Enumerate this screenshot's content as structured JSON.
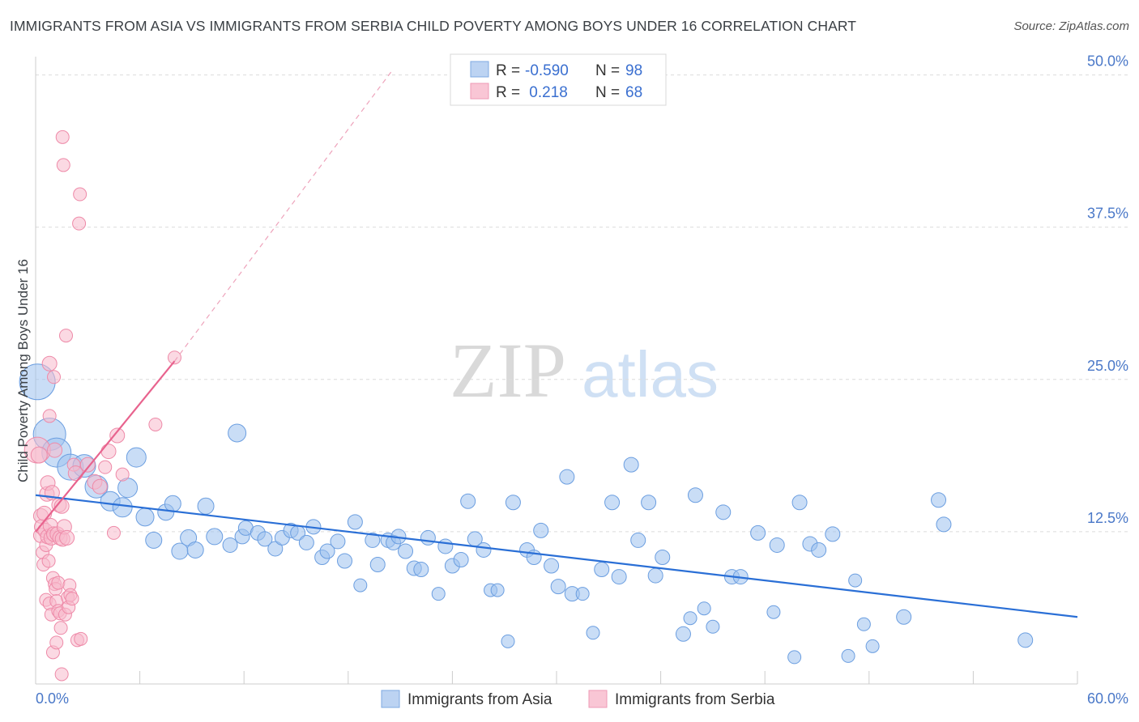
{
  "title": "IMMIGRANTS FROM ASIA VS IMMIGRANTS FROM SERBIA CHILD POVERTY AMONG BOYS UNDER 16 CORRELATION CHART",
  "source": "Source: ZipAtlas.com",
  "watermark": {
    "zip": "ZIP",
    "atlas": "atlas"
  },
  "chart_data": {
    "type": "scatter",
    "title": "IMMIGRANTS FROM ASIA VS IMMIGRANTS FROM SERBIA CHILD POVERTY AMONG BOYS UNDER 16 CORRELATION CHART",
    "xlabel": "",
    "ylabel": "Child Poverty Among Boys Under 16",
    "xlim": [
      0,
      60
    ],
    "ylim": [
      0,
      51.5
    ],
    "x_tick_labels": [
      "0.0%",
      "60.0%"
    ],
    "y_ticks": [
      12.5,
      25.0,
      37.5,
      50.0
    ],
    "y_tick_labels": [
      "12.5%",
      "25.0%",
      "37.5%",
      "50.0%"
    ],
    "grid": "horizontal dashed",
    "legend": {
      "placement": "top-center",
      "rows": [
        {
          "r_label": "R =",
          "r_value": "-0.590",
          "n_label": "N =",
          "n_value": "98"
        },
        {
          "r_label": "R =",
          "r_value": " 0.218",
          "n_label": "N =",
          "n_value": "68"
        }
      ]
    },
    "bottom_legend": [
      "Immigrants from Asia",
      "Immigrants from Serbia"
    ],
    "series": [
      {
        "name": "Immigrants from Asia",
        "color": "#9dc1ee",
        "stroke": "#6b9ee0",
        "trend_color": "#2a6fd6",
        "trend": {
          "x0": 0,
          "y0": 15.5,
          "x1": 60,
          "y1": 5.5
        },
        "points": [
          [
            0.1,
            24.8,
            22
          ],
          [
            0.8,
            20.5,
            20
          ],
          [
            1.2,
            19.0,
            18
          ],
          [
            2.0,
            17.8,
            16
          ],
          [
            2.8,
            17.9,
            14
          ],
          [
            3.5,
            16.2,
            14
          ],
          [
            4.3,
            15.0,
            12
          ],
          [
            5.0,
            14.5,
            12
          ],
          [
            5.3,
            16.1,
            12
          ],
          [
            5.8,
            18.6,
            12
          ],
          [
            6.3,
            13.7,
            11
          ],
          [
            6.8,
            11.8,
            10
          ],
          [
            7.5,
            14.1,
            10
          ],
          [
            7.9,
            14.8,
            10
          ],
          [
            8.3,
            10.9,
            10
          ],
          [
            8.8,
            12.0,
            10
          ],
          [
            9.2,
            11.0,
            10
          ],
          [
            9.8,
            14.6,
            10
          ],
          [
            10.3,
            12.1,
            10
          ],
          [
            11.2,
            11.4,
            9
          ],
          [
            11.6,
            20.6,
            11
          ],
          [
            11.9,
            12.1,
            9
          ],
          [
            12.1,
            12.8,
            9
          ],
          [
            12.8,
            12.4,
            9
          ],
          [
            13.2,
            11.9,
            9
          ],
          [
            13.8,
            11.1,
            9
          ],
          [
            14.2,
            12.0,
            9
          ],
          [
            14.7,
            12.6,
            9
          ],
          [
            15.1,
            12.4,
            9
          ],
          [
            15.6,
            11.6,
            9
          ],
          [
            16.0,
            12.9,
            9
          ],
          [
            16.5,
            10.4,
            9
          ],
          [
            16.8,
            10.9,
            9
          ],
          [
            17.4,
            11.7,
            9
          ],
          [
            17.8,
            10.1,
            9
          ],
          [
            18.4,
            13.3,
            9
          ],
          [
            18.7,
            8.1,
            8
          ],
          [
            19.4,
            11.8,
            9
          ],
          [
            19.7,
            9.8,
            9
          ],
          [
            20.3,
            11.8,
            9
          ],
          [
            20.6,
            11.6,
            9
          ],
          [
            20.9,
            12.1,
            9
          ],
          [
            21.3,
            10.9,
            9
          ],
          [
            21.8,
            9.5,
            9
          ],
          [
            22.2,
            9.4,
            9
          ],
          [
            22.6,
            12.0,
            9
          ],
          [
            23.2,
            7.4,
            8
          ],
          [
            23.6,
            11.3,
            9
          ],
          [
            24.0,
            9.7,
            9
          ],
          [
            24.5,
            10.2,
            9
          ],
          [
            24.9,
            15.0,
            9
          ],
          [
            25.3,
            11.9,
            9
          ],
          [
            25.8,
            11.0,
            9
          ],
          [
            26.2,
            7.7,
            8
          ],
          [
            26.6,
            7.7,
            8
          ],
          [
            27.2,
            3.5,
            8
          ],
          [
            27.5,
            14.9,
            9
          ],
          [
            28.3,
            11.0,
            9
          ],
          [
            28.7,
            10.4,
            9
          ],
          [
            29.1,
            12.6,
            9
          ],
          [
            29.7,
            9.7,
            9
          ],
          [
            30.1,
            8.0,
            9
          ],
          [
            30.6,
            17.0,
            9
          ],
          [
            30.9,
            7.4,
            9
          ],
          [
            31.5,
            7.4,
            8
          ],
          [
            32.1,
            4.2,
            8
          ],
          [
            32.6,
            9.4,
            9
          ],
          [
            33.2,
            14.9,
            9
          ],
          [
            33.6,
            8.8,
            9
          ],
          [
            34.3,
            18.0,
            9
          ],
          [
            34.7,
            11.8,
            9
          ],
          [
            35.3,
            14.9,
            9
          ],
          [
            35.7,
            8.9,
            9
          ],
          [
            36.1,
            10.4,
            9
          ],
          [
            37.3,
            4.1,
            9
          ],
          [
            37.7,
            5.4,
            8
          ],
          [
            38.0,
            15.5,
            9
          ],
          [
            38.5,
            6.2,
            8
          ],
          [
            39.0,
            4.7,
            8
          ],
          [
            39.6,
            14.1,
            9
          ],
          [
            40.1,
            8.8,
            9
          ],
          [
            40.6,
            8.8,
            9
          ],
          [
            41.6,
            12.4,
            9
          ],
          [
            42.5,
            5.9,
            8
          ],
          [
            42.7,
            11.4,
            9
          ],
          [
            43.7,
            2.2,
            8
          ],
          [
            44.0,
            14.9,
            9
          ],
          [
            44.6,
            11.5,
            9
          ],
          [
            45.1,
            11.0,
            9
          ],
          [
            45.9,
            12.3,
            9
          ],
          [
            46.8,
            2.3,
            8
          ],
          [
            47.2,
            8.5,
            8
          ],
          [
            47.7,
            4.9,
            8
          ],
          [
            48.2,
            3.1,
            8
          ],
          [
            50.0,
            5.5,
            9
          ],
          [
            52.0,
            15.1,
            9
          ],
          [
            52.3,
            13.1,
            9
          ],
          [
            57.0,
            3.6,
            9
          ]
        ]
      },
      {
        "name": "Immigrants from Serbia",
        "color": "#f7b9cc",
        "stroke": "#ee8aa8",
        "trend_color": "#e8638e",
        "trend": {
          "x0": 0,
          "y0": 12.5,
          "x1": 8.0,
          "y1": 26.5
        },
        "trend_dashed": {
          "x0": 8.0,
          "y0": 26.5,
          "x1": 20.5,
          "y1": 50.3
        },
        "points": [
          [
            0.1,
            19.2,
            16
          ],
          [
            0.2,
            18.8,
            10
          ],
          [
            0.3,
            13.8,
            9
          ],
          [
            0.3,
            12.2,
            9
          ],
          [
            0.35,
            12.9,
            9
          ],
          [
            0.4,
            10.8,
            8
          ],
          [
            0.45,
            9.8,
            8
          ],
          [
            0.5,
            14.0,
            9
          ],
          [
            0.55,
            12.6,
            9
          ],
          [
            0.6,
            11.4,
            8
          ],
          [
            0.6,
            6.9,
            8
          ],
          [
            0.65,
            15.6,
            9
          ],
          [
            0.7,
            16.5,
            9
          ],
          [
            0.7,
            12.1,
            9
          ],
          [
            0.75,
            10.1,
            8
          ],
          [
            0.8,
            6.6,
            8
          ],
          [
            0.8,
            26.3,
            9
          ],
          [
            0.8,
            22.0,
            8
          ],
          [
            0.85,
            13.0,
            9
          ],
          [
            0.9,
            12.0,
            9
          ],
          [
            0.9,
            5.7,
            8
          ],
          [
            0.95,
            15.7,
            9
          ],
          [
            1.0,
            8.7,
            8
          ],
          [
            1.0,
            2.6,
            8
          ],
          [
            1.05,
            25.2,
            8
          ],
          [
            1.05,
            12.3,
            9
          ],
          [
            1.1,
            19.2,
            9
          ],
          [
            1.1,
            8.2,
            8
          ],
          [
            1.15,
            7.8,
            8
          ],
          [
            1.2,
            6.8,
            8
          ],
          [
            1.2,
            3.4,
            8
          ],
          [
            1.25,
            12.3,
            9
          ],
          [
            1.3,
            8.3,
            8
          ],
          [
            1.3,
            6.0,
            8
          ],
          [
            1.35,
            14.7,
            9
          ],
          [
            1.4,
            12.0,
            9
          ],
          [
            1.4,
            5.8,
            8
          ],
          [
            1.45,
            4.6,
            8
          ],
          [
            1.5,
            14.6,
            9
          ],
          [
            1.5,
            0.8,
            8
          ],
          [
            1.55,
            44.9,
            8
          ],
          [
            1.55,
            11.9,
            9
          ],
          [
            1.6,
            42.6,
            8
          ],
          [
            1.65,
            12.9,
            9
          ],
          [
            1.7,
            5.7,
            8
          ],
          [
            1.75,
            28.6,
            8
          ],
          [
            1.8,
            12.0,
            9
          ],
          [
            1.85,
            7.1,
            8
          ],
          [
            1.9,
            6.3,
            8
          ],
          [
            1.95,
            8.1,
            8
          ],
          [
            2.0,
            7.3,
            8
          ],
          [
            2.1,
            7.0,
            8
          ],
          [
            2.2,
            18.0,
            8
          ],
          [
            2.3,
            17.3,
            9
          ],
          [
            2.4,
            3.6,
            8
          ],
          [
            2.5,
            37.8,
            8
          ],
          [
            2.55,
            40.2,
            8
          ],
          [
            2.6,
            3.7,
            8
          ],
          [
            3.0,
            18.0,
            9
          ],
          [
            3.4,
            16.6,
            9
          ],
          [
            3.7,
            16.2,
            9
          ],
          [
            4.0,
            17.8,
            8
          ],
          [
            4.2,
            19.1,
            9
          ],
          [
            4.5,
            12.4,
            8
          ],
          [
            4.7,
            20.4,
            9
          ],
          [
            5.0,
            17.2,
            8
          ],
          [
            6.9,
            21.3,
            8
          ],
          [
            8.0,
            26.8,
            8
          ]
        ]
      }
    ]
  }
}
